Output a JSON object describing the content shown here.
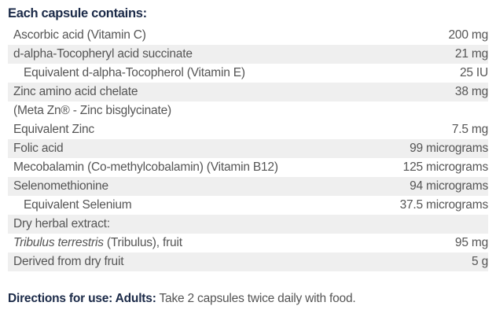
{
  "heading": "Each capsule contains:",
  "rows": [
    {
      "name": "Ascorbic acid (Vitamin C)",
      "amount": "200 mg"
    },
    {
      "name": "d-alpha-Tocopheryl acid succinate",
      "amount": "21 mg"
    },
    {
      "name": "Equivalent d-alpha-Tocopherol (Vitamin E)",
      "amount": "25 IU"
    },
    {
      "name": "Zinc amino acid chelate",
      "amount": "38 mg"
    },
    {
      "name": "(Meta Zn® - Zinc bisglycinate)",
      "amount": ""
    },
    {
      "name": "Equivalent Zinc",
      "amount": "7.5 mg"
    },
    {
      "name": "Folic acid",
      "amount": "99 micrograms"
    },
    {
      "name": "Mecobalamin (Co-methylcobalamin) (Vitamin B12)",
      "amount": "125 micrograms"
    },
    {
      "name": "Selenomethionine",
      "amount": "94 micrograms"
    },
    {
      "name": "Equivalent Selenium",
      "amount": "37.5 micrograms"
    },
    {
      "name": "Dry herbal extract:",
      "amount": ""
    },
    {
      "name_italic": "Tribulus terrestris",
      "name": " (Tribulus), fruit",
      "amount": "95 mg"
    },
    {
      "name": "Derived from dry fruit",
      "amount": "5 g"
    }
  ],
  "directions": {
    "label": "Directions for use: Adults:",
    "text": " Take 2 capsules twice daily with food."
  }
}
